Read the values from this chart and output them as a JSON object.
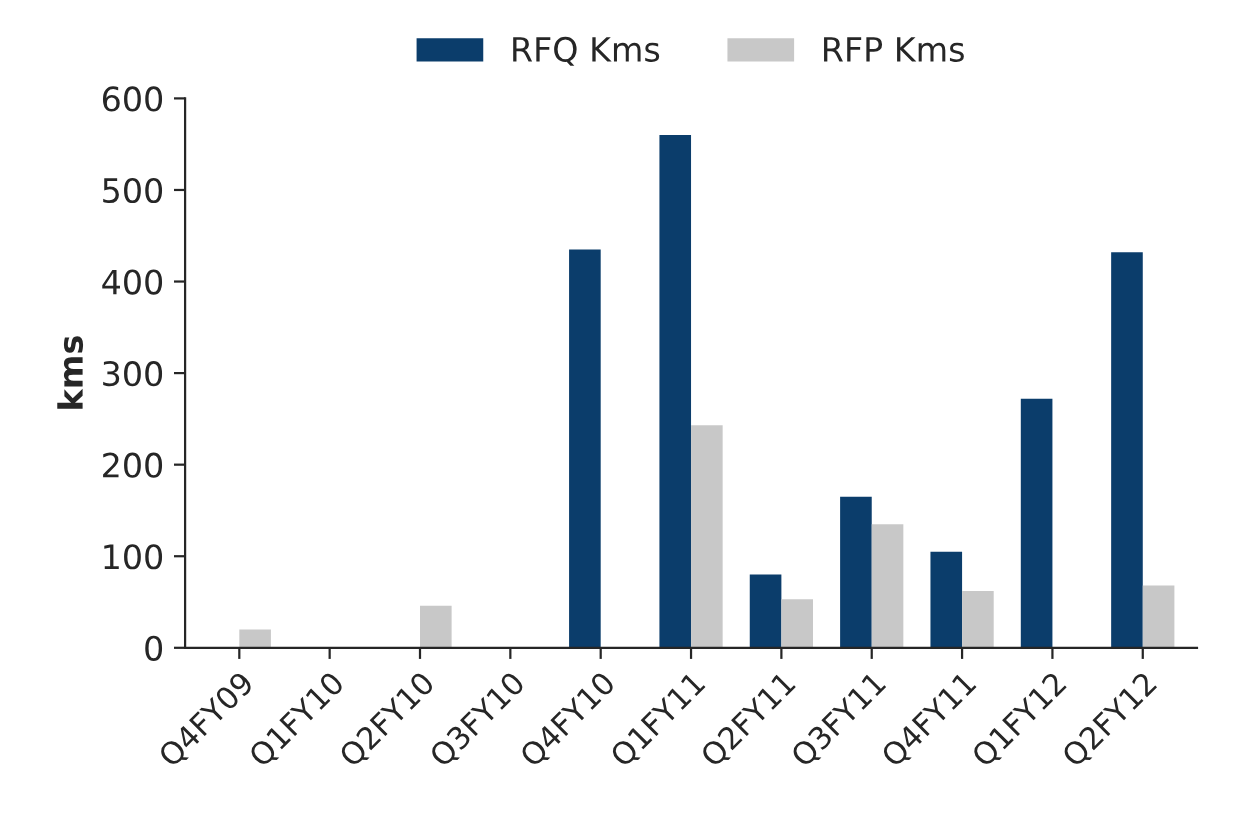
{
  "chart_data": {
    "type": "bar",
    "ylabel": "kms",
    "categories": [
      "Q4FY09",
      "Q1FY10",
      "Q2FY10",
      "Q3FY10",
      "Q4FY10",
      "Q1FY11",
      "Q2FY11",
      "Q3FY11",
      "Q4FY11",
      "Q1FY12",
      "Q2FY12"
    ],
    "series": [
      {
        "name": "RFQ Kms",
        "color": "#0b3d6b",
        "values": [
          0,
          0,
          0,
          0,
          435,
          560,
          80,
          165,
          105,
          272,
          432
        ]
      },
      {
        "name": "RFP Kms",
        "color": "#c8c8c8",
        "values": [
          20,
          0,
          46,
          0,
          0,
          243,
          53,
          135,
          62,
          0,
          68
        ]
      }
    ],
    "ylim": [
      0,
      600
    ],
    "yticks": [
      0,
      100,
      200,
      300,
      400,
      500,
      600
    ],
    "grid": false,
    "legend": "top"
  }
}
